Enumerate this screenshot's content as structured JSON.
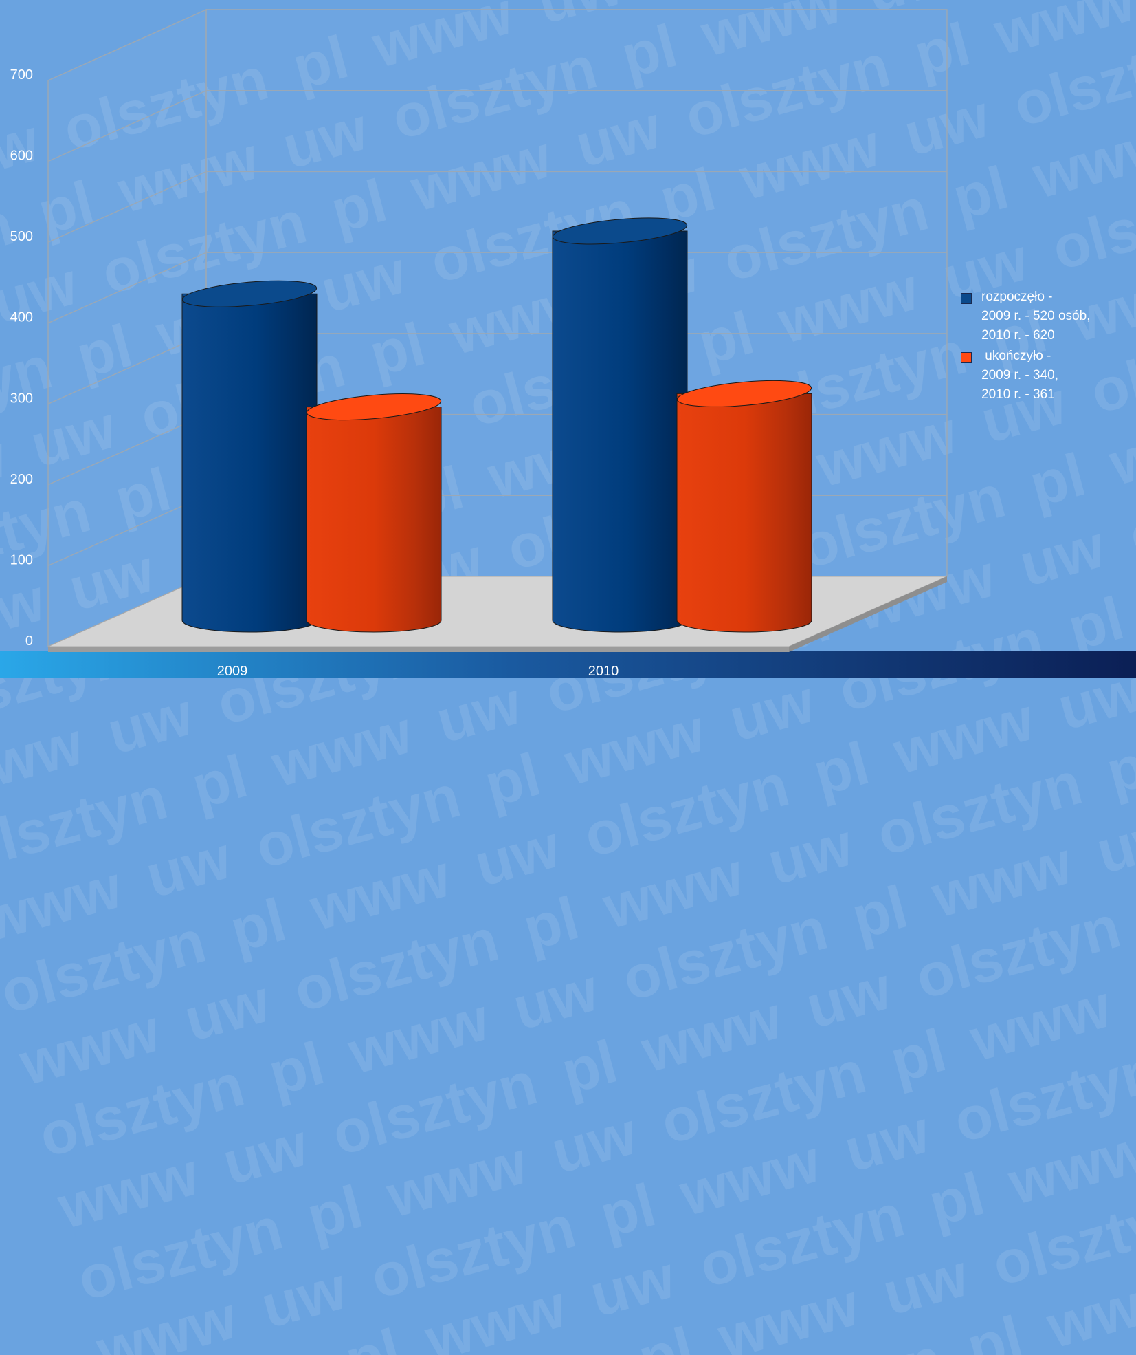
{
  "watermark": "www uw olsztyn pl",
  "chart_data": {
    "type": "bar",
    "style": "3d-cylinder",
    "categories": [
      "2009",
      "2010"
    ],
    "series": [
      {
        "name": "rozpoczęło",
        "values": [
          520,
          620
        ],
        "color": "#003f80"
      },
      {
        "name": "ukończyło",
        "values": [
          340,
          361
        ],
        "color": "#e63a0c"
      }
    ],
    "ylim": [
      0,
      700
    ],
    "yticks": [
      "0",
      "100",
      "200",
      "300",
      "400",
      "500",
      "600",
      "700"
    ],
    "grid": true,
    "legend_position": "right",
    "title": "",
    "xlabel": "",
    "ylabel": ""
  },
  "legend": {
    "entries": [
      {
        "lines": [
          "rozpoczęło -",
          "2009 r.  -  520 osób,",
          "2010 r.  -  620"
        ],
        "color": "#0b4a8c"
      },
      {
        "lines": [
          " ukończyło -",
          "2009 r.  -  340,",
          "2010 r.  -  361"
        ],
        "color": "#ff4a12"
      }
    ]
  },
  "colors": {
    "background": "#6aa3e0",
    "floor": "#d4d4d4",
    "grid": "#9aa8b6",
    "band_dark": "#0b2a63"
  }
}
